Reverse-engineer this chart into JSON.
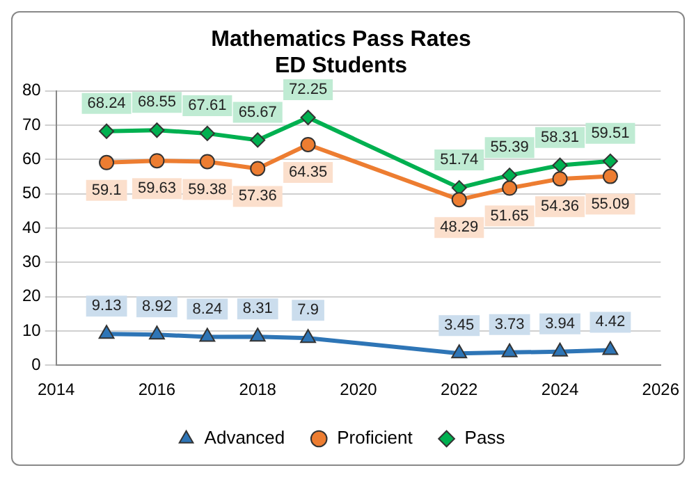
{
  "chart_data": {
    "type": "line",
    "title": "Mathematics Pass Rates",
    "subtitle": "ED Students",
    "x": [
      2015,
      2016,
      2017,
      2018,
      2019,
      2022,
      2023,
      2024,
      2025
    ],
    "series": [
      {
        "name": "Advanced",
        "color": "#2e75b6",
        "marker": "triangle",
        "values": [
          9.13,
          8.92,
          8.24,
          8.31,
          7.9,
          3.45,
          3.73,
          3.94,
          4.42
        ]
      },
      {
        "name": "Proficient",
        "color": "#ed7d31",
        "marker": "circle",
        "values": [
          59.1,
          59.63,
          59.38,
          57.36,
          64.35,
          48.29,
          51.65,
          54.36,
          55.09
        ]
      },
      {
        "name": "Pass",
        "color": "#00b050",
        "marker": "diamond",
        "values": [
          68.24,
          68.55,
          67.61,
          65.67,
          72.25,
          51.74,
          55.39,
          58.31,
          59.51
        ]
      }
    ],
    "xlim": [
      2014,
      2026
    ],
    "xticks": [
      2014,
      2016,
      2018,
      2020,
      2022,
      2024,
      2026
    ],
    "ylim": [
      0,
      80
    ],
    "yticks": [
      0,
      10,
      20,
      30,
      40,
      50,
      60,
      70,
      80
    ],
    "grid": "y",
    "legend": "bottom",
    "data_labels": true,
    "line_style": "solid"
  }
}
